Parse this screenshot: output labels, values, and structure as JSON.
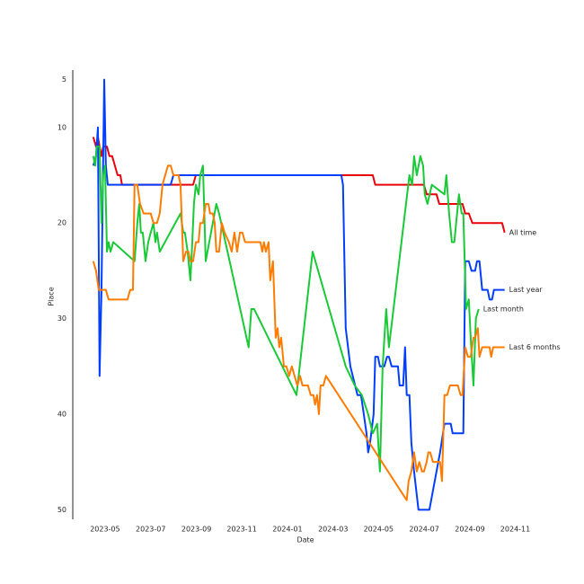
{
  "chart_data": {
    "type": "line",
    "x_label": "Date",
    "y_label": "Place",
    "xlim": [
      2023.215,
      2024.92
    ],
    "ylim": [
      4,
      51
    ],
    "y_inverted": true,
    "xticks": [
      {
        "value": 2023.333,
        "label": "2023-05"
      },
      {
        "value": 2023.5,
        "label": "2023-07"
      },
      {
        "value": 2023.667,
        "label": "2023-09"
      },
      {
        "value": 2023.833,
        "label": "2023-11"
      },
      {
        "value": 2024.0,
        "label": "2024-01"
      },
      {
        "value": 2024.167,
        "label": "2024-03"
      },
      {
        "value": 2024.333,
        "label": "2024-05"
      },
      {
        "value": 2024.5,
        "label": "2024-07"
      },
      {
        "value": 2024.667,
        "label": "2024-09"
      },
      {
        "value": 2024.833,
        "label": "2024-11"
      }
    ],
    "yticks": [
      5,
      10,
      20,
      30,
      40,
      50
    ],
    "series": [
      {
        "name": "All time",
        "color": "#e8000b",
        "x": [
          2023.29,
          2023.3,
          2023.307,
          2023.313,
          2023.32,
          2023.326,
          2023.333,
          2023.34,
          2023.349,
          2023.359,
          2023.369,
          2023.379,
          2023.389,
          2023.395,
          2023.655,
          2023.665,
          2024.312,
          2024.321,
          2024.499,
          2024.509,
          2024.545,
          2024.555,
          2024.64,
          2024.65,
          2024.663,
          2024.676,
          2024.785,
          2024.794
        ],
        "values": [
          11,
          12,
          11,
          12,
          13,
          12,
          12,
          12,
          13,
          13,
          14,
          15,
          15,
          16,
          16,
          15,
          15,
          16,
          16,
          17,
          17,
          18,
          18,
          19,
          19,
          20,
          20,
          21
        ]
      },
      {
        "name": "Last year",
        "color": "#023eff",
        "x": [
          2023.29,
          2023.3,
          2023.307,
          2023.313,
          2023.32,
          2023.33,
          2023.336,
          2023.343,
          2023.573,
          2023.583,
          2024.197,
          2024.203,
          2024.213,
          2024.23,
          2024.256,
          2024.269,
          2024.289,
          2024.295,
          2024.302,
          2024.315,
          2024.321,
          2024.331,
          2024.338,
          2024.354,
          2024.364,
          2024.371,
          2024.381,
          2024.404,
          2024.41,
          2024.423,
          2024.43,
          2024.436,
          2024.446,
          2024.453,
          2024.463,
          2024.479,
          2024.519,
          2024.532,
          2024.558,
          2024.574,
          2024.597,
          2024.604,
          2024.643,
          2024.65,
          2024.663,
          2024.673,
          2024.686,
          2024.693,
          2024.702,
          2024.712,
          2024.732,
          2024.739,
          2024.748,
          2024.755,
          2024.794
        ],
        "values": [
          14,
          13,
          10,
          36,
          27,
          5,
          14,
          16,
          16,
          15,
          15,
          16,
          31,
          35,
          38,
          38,
          42,
          44,
          43,
          40,
          34,
          34,
          35,
          35,
          34,
          34,
          35,
          35,
          37,
          37,
          33,
          38,
          38,
          43,
          46,
          50,
          50,
          48,
          44,
          41,
          41,
          42,
          42,
          24,
          24,
          25,
          25,
          24,
          24,
          27,
          27,
          28,
          28,
          27,
          27
        ]
      },
      {
        "name": "Last month",
        "color": "#1ac938",
        "x": [
          2023.29,
          2023.297,
          2023.303,
          2023.313,
          2023.32,
          2023.326,
          2023.333,
          2023.34,
          2023.346,
          2023.353,
          2023.363,
          2023.441,
          2023.451,
          2023.458,
          2023.464,
          2023.471,
          2023.481,
          2023.491,
          2023.5,
          2023.51,
          2023.517,
          2023.523,
          2023.533,
          2023.609,
          2023.619,
          2023.625,
          2023.635,
          2023.645,
          2023.652,
          2023.658,
          2023.665,
          2023.675,
          2023.681,
          2023.691,
          2023.701,
          2023.74,
          2023.75,
          2023.858,
          2023.868,
          2023.878,
          2024.033,
          2024.092,
          2024.213,
          2024.246,
          2024.272,
          2024.295,
          2024.312,
          2024.328,
          2024.338,
          2024.348,
          2024.361,
          2024.371,
          2024.446,
          2024.456,
          2024.463,
          2024.473,
          2024.486,
          2024.496,
          2024.502,
          2024.512,
          2024.528,
          2024.574,
          2024.581,
          2024.591,
          2024.601,
          2024.61,
          2024.627,
          2024.637,
          2024.643,
          2024.653,
          2024.663,
          2024.67,
          2024.68,
          2024.689,
          2024.699
        ],
        "values": [
          13,
          14,
          12,
          12,
          20,
          15,
          14,
          23,
          22,
          23,
          22,
          24,
          20,
          18,
          21,
          21,
          24,
          22,
          21,
          20,
          22,
          21,
          23,
          19,
          21,
          21,
          23,
          26,
          22,
          18,
          16,
          17,
          15,
          14,
          24,
          18,
          19,
          33,
          29,
          29,
          38,
          23,
          35,
          37,
          38,
          40,
          42,
          41,
          46,
          35,
          29,
          33,
          15,
          16,
          13,
          15,
          13,
          14,
          17,
          18,
          16,
          17,
          15,
          19,
          22,
          22,
          17,
          19,
          19,
          29,
          28,
          32,
          37,
          30,
          29
        ]
      },
      {
        "name": "Last 6 months",
        "color": "#ff7c00",
        "x": [
          2023.29,
          2023.3,
          2023.31,
          2023.336,
          2023.346,
          2023.415,
          2023.425,
          2023.435,
          2023.441,
          2023.451,
          2023.461,
          2023.474,
          2023.5,
          2023.51,
          2023.523,
          2023.533,
          2023.543,
          2023.553,
          2023.563,
          2023.573,
          2023.583,
          2023.602,
          2023.609,
          2023.619,
          2023.629,
          2023.638,
          2023.645,
          2023.655,
          2023.665,
          2023.675,
          2023.681,
          2023.691,
          2023.701,
          2023.711,
          2023.717,
          2023.727,
          2023.734,
          2023.74,
          2023.75,
          2023.76,
          2023.77,
          2023.786,
          2023.796,
          2023.806,
          2023.816,
          2023.826,
          2023.835,
          2023.845,
          2023.901,
          2023.908,
          2023.914,
          2023.921,
          2023.931,
          2023.937,
          2023.947,
          2023.957,
          2023.964,
          2023.97,
          2023.977,
          2023.987,
          2023.996,
          2024.006,
          2024.016,
          2024.026,
          2024.036,
          2024.046,
          2024.055,
          2024.075,
          2024.085,
          2024.095,
          2024.101,
          2024.108,
          2024.115,
          2024.121,
          2024.131,
          2024.141,
          2024.436,
          2024.443,
          2024.453,
          2024.463,
          2024.473,
          2024.482,
          2024.492,
          2024.499,
          2024.509,
          2024.515,
          2024.522,
          2024.532,
          2024.558,
          2024.565,
          2024.574,
          2024.584,
          2024.594,
          2024.623,
          2024.633,
          2024.64,
          2024.65,
          2024.66,
          2024.67,
          2024.68,
          2024.686,
          2024.696,
          2024.702,
          2024.712,
          2024.739,
          2024.745,
          2024.752,
          2024.794
        ],
        "values": [
          24,
          25,
          27,
          27,
          28,
          28,
          27,
          27,
          16,
          16,
          18,
          19,
          19,
          20,
          20,
          19,
          16,
          15,
          14,
          14,
          15,
          15,
          16,
          24,
          23,
          23,
          24,
          24,
          22,
          22,
          20,
          20,
          18,
          18,
          19,
          19,
          20,
          23,
          23,
          20,
          21,
          22,
          23,
          21,
          23,
          21,
          21,
          22,
          22,
          23,
          22,
          23,
          22,
          26,
          24,
          32,
          31,
          33,
          32,
          35,
          35,
          36,
          35,
          36,
          37,
          36,
          37,
          37,
          38,
          38,
          39,
          38,
          40,
          37,
          37,
          36,
          49,
          47,
          46,
          44,
          46,
          45,
          46,
          46,
          45,
          44,
          44,
          45,
          45,
          47,
          38,
          38,
          37,
          37,
          38,
          38,
          33,
          34,
          34,
          32,
          32,
          31,
          34,
          33,
          33,
          34,
          33,
          33
        ]
      }
    ]
  }
}
